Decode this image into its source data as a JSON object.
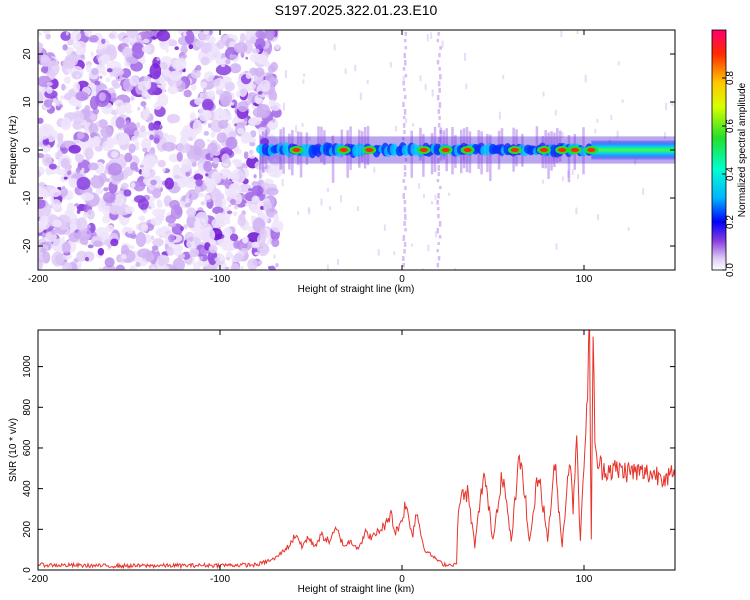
{
  "title": "S197.2025.322.01.23.E10",
  "chart_data": [
    {
      "type": "heatmap",
      "title": "S197.2025.322.01.23.E10",
      "xlabel": "Height of straight line (km)",
      "ylabel": "Frequency (Hz)",
      "xlim": [
        -200,
        150
      ],
      "ylim": [
        -25,
        25
      ],
      "xticks": [
        -200,
        -100,
        0,
        100
      ],
      "yticks": [
        -20,
        -10,
        0,
        10,
        20
      ],
      "colorbar": {
        "label": "Normalized spectral amplitude",
        "range": [
          0,
          1
        ],
        "ticks": [
          "0.0",
          "0.2",
          "0.4",
          "0.6",
          "0.8"
        ]
      },
      "noise_region_km": [
        -200,
        -75
      ],
      "signal_band_hz": [
        -2,
        2
      ],
      "vertical_streaks_km": [
        1,
        20
      ],
      "strong_peaks_km": [
        -58,
        -32,
        -18,
        12,
        24,
        36,
        62,
        78,
        88,
        95,
        104
      ],
      "strong_band_start_km": 104
    },
    {
      "type": "line",
      "xlabel": "Height of straight line (km)",
      "ylabel": "SNR (10 * v/v)",
      "xlim": [
        -200,
        150
      ],
      "ylim": [
        0,
        1180
      ],
      "xticks": [
        -200,
        -100,
        0,
        100
      ],
      "yticks": [
        0,
        200,
        400,
        600,
        800,
        1000
      ],
      "series": [
        {
          "name": "SNR",
          "color": "#e8332b",
          "x": [
            -200,
            -160,
            -120,
            -80,
            -70,
            -62,
            -58,
            -55,
            -52,
            -48,
            -44,
            -40,
            -36,
            -32,
            -28,
            -24,
            -20,
            -16,
            -12,
            -8,
            -6,
            -4,
            -2,
            0,
            2,
            4,
            6,
            8,
            10,
            12,
            15,
            18,
            22,
            26,
            30,
            31,
            33,
            36,
            40,
            45,
            50,
            55,
            60,
            64,
            66,
            70,
            75,
            80,
            84,
            88,
            92,
            94,
            96,
            98,
            100,
            102,
            103,
            104,
            105,
            106,
            108,
            110,
            120,
            130,
            140,
            150
          ],
          "values": [
            25,
            20,
            22,
            25,
            55,
            120,
            180,
            110,
            160,
            120,
            170,
            140,
            200,
            120,
            140,
            110,
            180,
            160,
            200,
            230,
            300,
            180,
            210,
            250,
            330,
            230,
            180,
            290,
            200,
            110,
            80,
            60,
            30,
            25,
            30,
            320,
            360,
            380,
            120,
            480,
            150,
            490,
            140,
            510,
            520,
            130,
            490,
            150,
            520,
            120,
            560,
            300,
            700,
            130,
            550,
            860,
            1180,
            160,
            1180,
            580,
            520,
            500,
            490,
            480,
            470,
            460
          ]
        }
      ]
    }
  ]
}
